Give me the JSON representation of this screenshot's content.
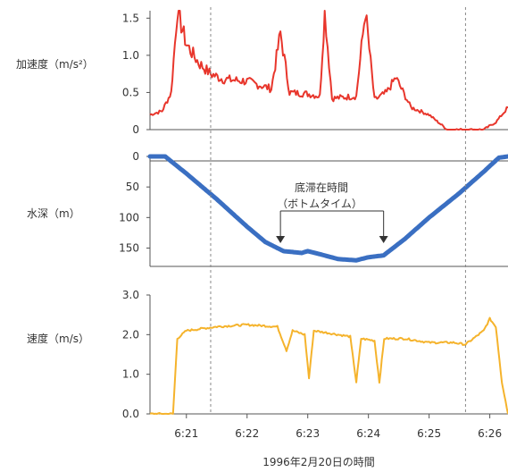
{
  "colors": {
    "accel": "#e8362c",
    "depth": "#3a6fc2",
    "speed": "#f5b32c",
    "axis": "#555555",
    "grid": "#888888"
  },
  "chart_data": {
    "type": "line",
    "x_title": "1996年2月20日の時間",
    "x_ticks": [
      "6:21",
      "6:22",
      "6:23",
      "6:24",
      "6:25",
      "6:26"
    ],
    "x_range_minutes": [
      "6:20.4",
      "6:26.3"
    ],
    "vertical_dashed_lines": [
      "6:21.4",
      "6:25.6"
    ],
    "panels": [
      {
        "name": "加速度",
        "label": "加速度（m/s²）",
        "y_ticks": [
          "0",
          "0.5",
          "1.0",
          "1.5"
        ],
        "ylim": [
          0,
          1.6
        ],
        "points": [
          [
            "6:20.4",
            0.2
          ],
          [
            "6:20.6",
            0.25
          ],
          [
            "6:20.75",
            0.5
          ],
          [
            "6:20.85",
            1.6
          ],
          [
            "6:21.0",
            1.15
          ],
          [
            "6:21.2",
            0.9
          ],
          [
            "6:21.4",
            0.75
          ],
          [
            "6:21.6",
            0.68
          ],
          [
            "6:22.0",
            0.65
          ],
          [
            "6:22.4",
            0.55
          ],
          [
            "6:22.55",
            1.3
          ],
          [
            "6:22.7",
            0.5
          ],
          [
            "6:23.0",
            0.48
          ],
          [
            "6:23.2",
            0.45
          ],
          [
            "6:23.28",
            1.6
          ],
          [
            "6:23.4",
            0.42
          ],
          [
            "6:23.8",
            0.45
          ],
          [
            "6:23.95",
            1.6
          ],
          [
            "6:24.1",
            0.4
          ],
          [
            "6:24.3",
            0.5
          ],
          [
            "6:24.45",
            0.7
          ],
          [
            "6:24.7",
            0.3
          ],
          [
            "6:25.0",
            0.2
          ],
          [
            "6:25.3",
            0.0
          ],
          [
            "6:25.9",
            0.0
          ],
          [
            "6:26.1",
            0.1
          ],
          [
            "6:26.3",
            0.3
          ]
        ]
      },
      {
        "name": "水深",
        "label": "水深（m）",
        "y_ticks": [
          "0",
          "50",
          "100",
          "150"
        ],
        "ylim": [
          180,
          0
        ],
        "annotation_title": "底滞在時間",
        "annotation_subtitle": "（ボトムタイム）",
        "bottom_time_start": "6:22.55",
        "bottom_time_end": "6:24.25",
        "points": [
          [
            "6:20.4",
            0
          ],
          [
            "6:20.65",
            0
          ],
          [
            "6:21.0",
            28
          ],
          [
            "6:21.5",
            70
          ],
          [
            "6:22.0",
            115
          ],
          [
            "6:22.3",
            140
          ],
          [
            "6:22.6",
            155
          ],
          [
            "6:22.9",
            158
          ],
          [
            "6:23.0",
            155
          ],
          [
            "6:23.2",
            160
          ],
          [
            "6:23.5",
            168
          ],
          [
            "6:23.8",
            170
          ],
          [
            "6:24.0",
            165
          ],
          [
            "6:24.25",
            162
          ],
          [
            "6:24.6",
            135
          ],
          [
            "6:25.0",
            100
          ],
          [
            "6:25.5",
            60
          ],
          [
            "6:25.9",
            25
          ],
          [
            "6:26.15",
            2
          ],
          [
            "6:26.3",
            0
          ]
        ]
      },
      {
        "name": "速度",
        "label": "速度（m/s）",
        "y_ticks": [
          "0.0",
          "1.0",
          "2.0",
          "3.0"
        ],
        "ylim": [
          0,
          3.0
        ],
        "points": [
          [
            "6:20.4",
            0.0
          ],
          [
            "6:20.78",
            0.0
          ],
          [
            "6:20.85",
            1.9
          ],
          [
            "6:21.0",
            2.1
          ],
          [
            "6:21.5",
            2.2
          ],
          [
            "6:22.0",
            2.25
          ],
          [
            "6:22.5",
            2.2
          ],
          [
            "6:22.65",
            1.6
          ],
          [
            "6:22.75",
            2.1
          ],
          [
            "6:22.95",
            2.0
          ],
          [
            "6:23.02",
            0.9
          ],
          [
            "6:23.1",
            2.1
          ],
          [
            "6:23.5",
            2.0
          ],
          [
            "6:23.7",
            1.95
          ],
          [
            "6:23.8",
            0.8
          ],
          [
            "6:23.88",
            1.9
          ],
          [
            "6:24.1",
            1.85
          ],
          [
            "6:24.18",
            0.8
          ],
          [
            "6:24.26",
            1.9
          ],
          [
            "6:24.6",
            1.9
          ],
          [
            "6:25.0",
            1.8
          ],
          [
            "6:25.4",
            1.8
          ],
          [
            "6:25.6",
            1.75
          ],
          [
            "6:25.9",
            2.1
          ],
          [
            "6:26.0",
            2.4
          ],
          [
            "6:26.1",
            2.2
          ],
          [
            "6:26.2",
            0.8
          ],
          [
            "6:26.3",
            0.0
          ]
        ]
      }
    ]
  }
}
